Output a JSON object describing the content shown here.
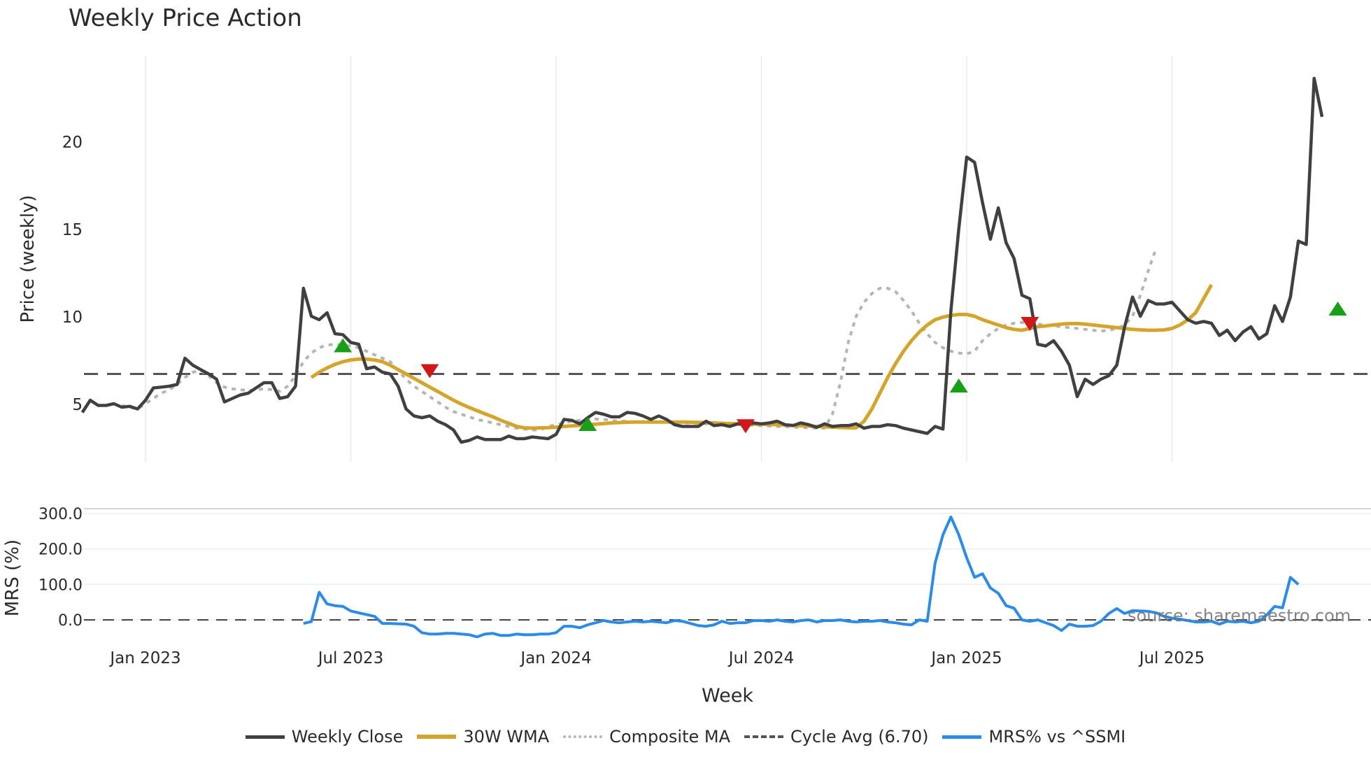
{
  "title": "Weekly Price Action",
  "source": "source: sharemaestro.com",
  "legend": [
    {
      "label": "Weekly Close",
      "color": "#404040",
      "style": "solid"
    },
    {
      "label": "30W WMA",
      "color": "#d4a52a",
      "style": "solid"
    },
    {
      "label": "Composite MA",
      "color": "#b5b5b5",
      "style": "dotted"
    },
    {
      "label": "Cycle Avg (6.70)",
      "color": "#555555",
      "style": "dashed"
    },
    {
      "label": "MRS% vs ^SSMI",
      "color": "#2b8be8",
      "style": "solid"
    }
  ],
  "chart_data": [
    {
      "type": "line",
      "title": "Weekly Price Action",
      "xlabel": "Week",
      "ylabel": "Price (weekly)",
      "x_ticks": [
        "Jan 2023",
        "Jul 2023",
        "Jan 2024",
        "Jul 2024",
        "Jan 2025",
        "Jul 2025"
      ],
      "y_ticks": [
        5,
        10,
        15,
        20
      ],
      "ylim": [
        1.8,
        25
      ],
      "grid": true,
      "legend_position": "bottom",
      "x_start_label": "Nov 2022",
      "week_step": 1,
      "series": [
        {
          "name": "Weekly Close",
          "color": "#404040",
          "start_week": -8,
          "values": [
            4.5,
            5.2,
            4.9,
            4.9,
            5.0,
            4.8,
            4.85,
            4.7,
            5.2,
            5.9,
            5.95,
            6.0,
            6.1,
            7.6,
            7.2,
            6.95,
            6.7,
            6.4,
            5.1,
            5.3,
            5.5,
            5.6,
            5.9,
            6.2,
            6.2,
            5.3,
            5.4,
            6.0,
            11.6,
            10.0,
            9.8,
            10.2,
            9.0,
            8.95,
            8.5,
            8.4,
            7.0,
            7.1,
            6.8,
            6.7,
            6.0,
            4.7,
            4.3,
            4.2,
            4.3,
            4.0,
            3.8,
            3.5,
            2.8,
            2.9,
            3.1,
            2.95,
            2.95,
            2.95,
            3.15,
            3.0,
            3.0,
            3.1,
            3.05,
            3.0,
            3.25,
            4.1,
            4.05,
            3.85,
            4.2,
            4.5,
            4.4,
            4.25,
            4.25,
            4.5,
            4.45,
            4.3,
            4.1,
            4.3,
            4.1,
            3.8,
            3.7,
            3.7,
            3.7,
            4.0,
            3.75,
            3.8,
            3.7,
            3.85,
            3.8,
            3.9,
            3.85,
            3.9,
            4.0,
            3.8,
            3.75,
            3.9,
            3.8,
            3.65,
            3.85,
            3.7,
            3.75,
            3.75,
            3.85,
            3.6,
            3.7,
            3.7,
            3.8,
            3.75,
            3.6,
            3.5,
            3.4,
            3.3,
            3.7,
            3.55,
            10.3,
            15.0,
            19.1,
            18.8,
            16.5,
            14.4,
            16.2,
            14.2,
            13.3,
            11.2,
            11.0,
            8.4,
            8.3,
            8.6,
            8.0,
            7.2,
            5.4,
            6.4,
            6.1,
            6.4,
            6.6,
            7.2,
            9.4,
            11.1,
            10.0,
            10.9,
            10.7,
            10.7,
            10.8,
            10.3,
            9.8,
            9.6,
            9.7,
            9.6,
            8.9,
            9.2,
            8.6,
            9.1,
            9.4,
            8.7,
            9.0,
            10.6,
            9.7,
            11.1,
            14.3,
            14.1,
            23.6,
            21.4
          ]
        },
        {
          "name": "30W WMA",
          "color": "#d4a52a",
          "start_week": 21,
          "values": [
            6.5,
            6.8,
            7.05,
            7.25,
            7.4,
            7.5,
            7.55,
            7.55,
            7.5,
            7.4,
            7.2,
            6.95,
            6.7,
            6.45,
            6.2,
            5.95,
            5.7,
            5.45,
            5.2,
            4.98,
            4.78,
            4.6,
            4.42,
            4.25,
            4.05,
            3.88,
            3.7,
            3.62,
            3.6,
            3.62,
            3.63,
            3.66,
            3.7,
            3.73,
            3.76,
            3.8,
            3.83,
            3.86,
            3.9,
            3.92,
            3.94,
            3.95,
            3.95,
            3.95,
            3.95,
            3.95,
            3.95,
            3.95,
            3.94,
            3.93,
            3.92,
            3.9,
            3.88,
            3.86,
            3.85,
            3.84,
            3.83,
            3.82,
            3.81,
            3.8,
            3.78,
            3.76,
            3.74,
            3.72,
            3.7,
            3.68,
            3.66,
            3.64,
            3.62,
            3.62,
            4.0,
            4.7,
            5.6,
            6.5,
            7.3,
            8.0,
            8.6,
            9.1,
            9.5,
            9.8,
            9.95,
            10.05,
            10.1,
            10.1,
            10.0,
            9.8,
            9.65,
            9.5,
            9.35,
            9.25,
            9.2,
            9.3,
            9.4,
            9.45,
            9.5,
            9.55,
            9.58,
            9.58,
            9.55,
            9.5,
            9.45,
            9.4,
            9.35,
            9.3,
            9.25,
            9.22,
            9.2,
            9.2,
            9.22,
            9.3,
            9.5,
            9.8,
            10.2,
            11.0,
            11.8
          ]
        },
        {
          "name": "Composite MA",
          "color": "#b5b5b5",
          "start_week": -3,
          "values": [
            4.9,
            4.8,
            4.7,
            5.0,
            5.3,
            5.6,
            5.8,
            6.1,
            6.5,
            6.8,
            6.9,
            6.6,
            6.2,
            5.95,
            5.85,
            5.8,
            5.75,
            5.8,
            5.85,
            5.8,
            5.7,
            6.0,
            6.6,
            7.4,
            7.9,
            8.2,
            8.35,
            8.4,
            8.35,
            8.3,
            8.2,
            8.0,
            7.8,
            7.6,
            7.4,
            6.9,
            6.4,
            6.0,
            5.7,
            5.4,
            5.1,
            4.8,
            4.55,
            4.4,
            4.25,
            4.1,
            4.0,
            3.9,
            3.8,
            3.7,
            3.6,
            3.55,
            3.5,
            3.5,
            3.7,
            3.8,
            3.9,
            4.0,
            4.05,
            4.1,
            4.12,
            4.1,
            4.05,
            4.0,
            4.0,
            3.95,
            3.95,
            3.95,
            3.95,
            3.95,
            3.95,
            3.9,
            3.9,
            3.88,
            3.85,
            3.85,
            3.82,
            3.8,
            3.8,
            3.78,
            3.76,
            3.74,
            3.72,
            3.7,
            3.68,
            3.66,
            3.64,
            3.62,
            3.6,
            3.6,
            4.4,
            6.2,
            8.5,
            10.0,
            10.8,
            11.3,
            11.6,
            11.6,
            11.4,
            10.9,
            10.3,
            9.6,
            9.0,
            8.5,
            8.2,
            8.0,
            7.9,
            7.85,
            8.0,
            8.6,
            9.0,
            9.3,
            9.5,
            9.6,
            9.65,
            9.6,
            9.55,
            9.5,
            9.45,
            9.4,
            9.35,
            9.3,
            9.25,
            9.2,
            9.15,
            9.2,
            9.3,
            9.5,
            10.0,
            11.2,
            12.6,
            13.9
          ]
        },
        {
          "name": "Cycle Avg (6.70)",
          "color": "#555555",
          "constant": 6.7
        }
      ],
      "signals": [
        {
          "type": "buy",
          "week": 25,
          "price": 8.3,
          "color": "#16a016"
        },
        {
          "type": "sell",
          "week": 36,
          "price": 6.9,
          "color": "#d01818"
        },
        {
          "type": "buy",
          "week": 56,
          "price": 3.8,
          "color": "#16a016"
        },
        {
          "type": "sell",
          "week": 76,
          "price": 3.75,
          "color": "#d01818"
        },
        {
          "type": "buy",
          "week": 103,
          "price": 6.0,
          "color": "#16a016"
        },
        {
          "type": "sell",
          "week": 112,
          "price": 9.6,
          "color": "#d01818"
        },
        {
          "type": "buy",
          "week": 151,
          "price": 10.4,
          "color": "#16a016"
        }
      ]
    },
    {
      "type": "line",
      "ylabel": "MRS (%)",
      "xlabel": "Week",
      "y_ticks": [
        "0.0",
        "100.0",
        "200.0",
        "300.0"
      ],
      "ylim": [
        -60,
        320
      ],
      "series": [
        {
          "name": "MRS% vs ^SSMI",
          "color": "#2b8be8",
          "start_week": 20,
          "values": [
            -10,
            -5,
            78,
            45,
            40,
            38,
            25,
            20,
            15,
            10,
            -10,
            -10,
            -11,
            -12,
            -18,
            -36,
            -40,
            -40,
            -38,
            -38,
            -40,
            -42,
            -48,
            -40,
            -38,
            -44,
            -44,
            -40,
            -42,
            -42,
            -40,
            -40,
            -36,
            -18,
            -18,
            -22,
            -14,
            -8,
            -2,
            -6,
            -8,
            -6,
            -4,
            -6,
            -4,
            -6,
            -8,
            -2,
            -4,
            -10,
            -16,
            -18,
            -14,
            -4,
            -10,
            -8,
            -8,
            -2,
            -2,
            -4,
            0,
            -4,
            -6,
            -2,
            0,
            -6,
            -2,
            -2,
            0,
            -4,
            -6,
            -4,
            -4,
            -2,
            -6,
            -8,
            -12,
            -14,
            0,
            -4,
            160,
            240,
            290,
            240,
            175,
            120,
            130,
            90,
            75,
            40,
            33,
            0,
            -4,
            0,
            -8,
            -16,
            -30,
            -12,
            -18,
            -18,
            -16,
            -4,
            18,
            32,
            18,
            26,
            25,
            24,
            20,
            10,
            5,
            2,
            -2,
            -6,
            -6,
            -4,
            -12,
            -4,
            -6,
            -4,
            -8,
            -4,
            14,
            38,
            34,
            120,
            100
          ]
        },
        {
          "name": "Zero line",
          "constant": 0
        }
      ]
    }
  ],
  "axes": {
    "price_ylabel": "Price (weekly)",
    "mrs_ylabel": "MRS (%)",
    "xlabel": "Week",
    "price_ticks": [
      "20",
      "15",
      "10",
      "5"
    ],
    "mrs_ticks": [
      "300.0",
      "200.0",
      "100.0",
      "0.0"
    ],
    "x_ticks": [
      "Jan 2023",
      "Jul 2023",
      "Jan 2024",
      "Jul 2024",
      "Jan 2025",
      "Jul 2025"
    ]
  }
}
